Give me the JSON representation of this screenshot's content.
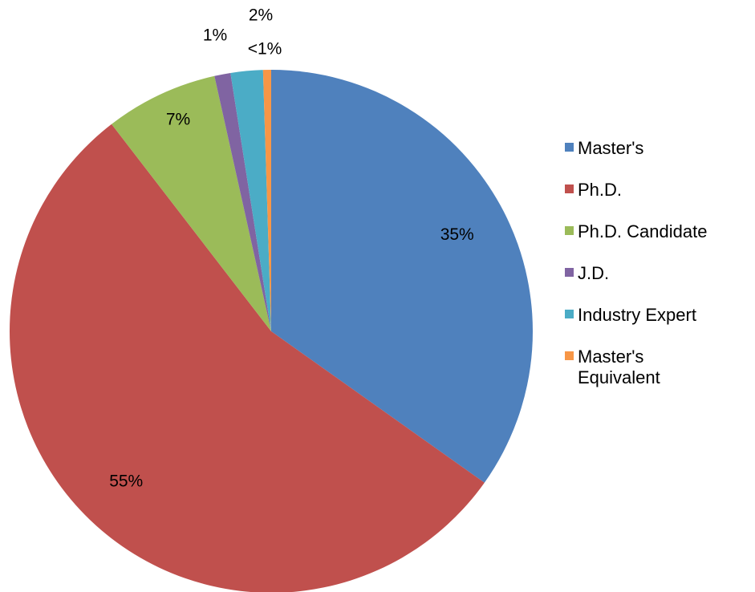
{
  "chart_data": {
    "type": "pie",
    "categories": [
      "Master's",
      "Ph.D.",
      "Ph.D. Candidate",
      "J.D.",
      "Industry Expert",
      "Master's Equivalent"
    ],
    "values": [
      35,
      55,
      7,
      1,
      2,
      0.5
    ],
    "value_labels": [
      "35%",
      "55%",
      "7%",
      "1%",
      "2%",
      "<1%"
    ],
    "colors": [
      "#4f81bd",
      "#c0504d",
      "#9bbb59",
      "#8064a2",
      "#4bacc6",
      "#f79646"
    ],
    "legend": "right"
  }
}
